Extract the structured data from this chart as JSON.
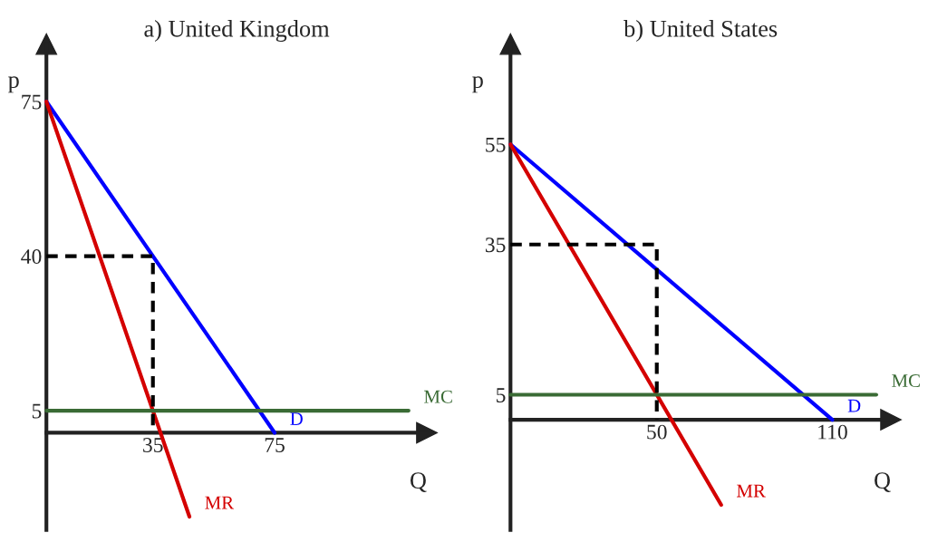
{
  "chart_data": [
    {
      "type": "line",
      "title": "a) United Kingdom",
      "xlabel": "Q",
      "ylabel": "p",
      "xlim": [
        0,
        125
      ],
      "ylim": [
        -22,
        88
      ],
      "xticks": [
        35,
        75
      ],
      "yticks": [
        5,
        40,
        75
      ],
      "legend": false,
      "grid": false,
      "series": [
        {
          "name": "D",
          "color": "#0000ff",
          "x": [
            0,
            75
          ],
          "values": [
            75,
            0
          ]
        },
        {
          "name": "MR",
          "color": "#d40000",
          "x": [
            0,
            47
          ],
          "values": [
            75,
            -19
          ]
        },
        {
          "name": "MC",
          "color": "#3a6b35",
          "x": [
            0,
            119
          ],
          "values": [
            5,
            5
          ]
        },
        {
          "color": "#000000",
          "line_style": "dashed",
          "x": [
            0,
            35,
            35
          ],
          "values": [
            40,
            40,
            0
          ]
        }
      ]
    },
    {
      "type": "line",
      "title": "b) United States",
      "xlabel": "Q",
      "ylabel": "p",
      "xlim": [
        0,
        130
      ],
      "ylim": [
        -22,
        75
      ],
      "xticks": [
        50,
        110
      ],
      "yticks": [
        5,
        35,
        55
      ],
      "legend": false,
      "grid": false,
      "series": [
        {
          "name": "D",
          "color": "#0000ff",
          "x": [
            0,
            110
          ],
          "values": [
            55,
            0
          ]
        },
        {
          "name": "MR",
          "color": "#d40000",
          "x": [
            0,
            72
          ],
          "values": [
            55,
            -17
          ]
        },
        {
          "name": "MC",
          "color": "#3a6b35",
          "x": [
            0,
            125
          ],
          "values": [
            5,
            5
          ]
        },
        {
          "color": "#000000",
          "line_style": "dashed",
          "x": [
            0,
            50,
            50
          ],
          "values": [
            35,
            35,
            0
          ]
        }
      ]
    }
  ]
}
